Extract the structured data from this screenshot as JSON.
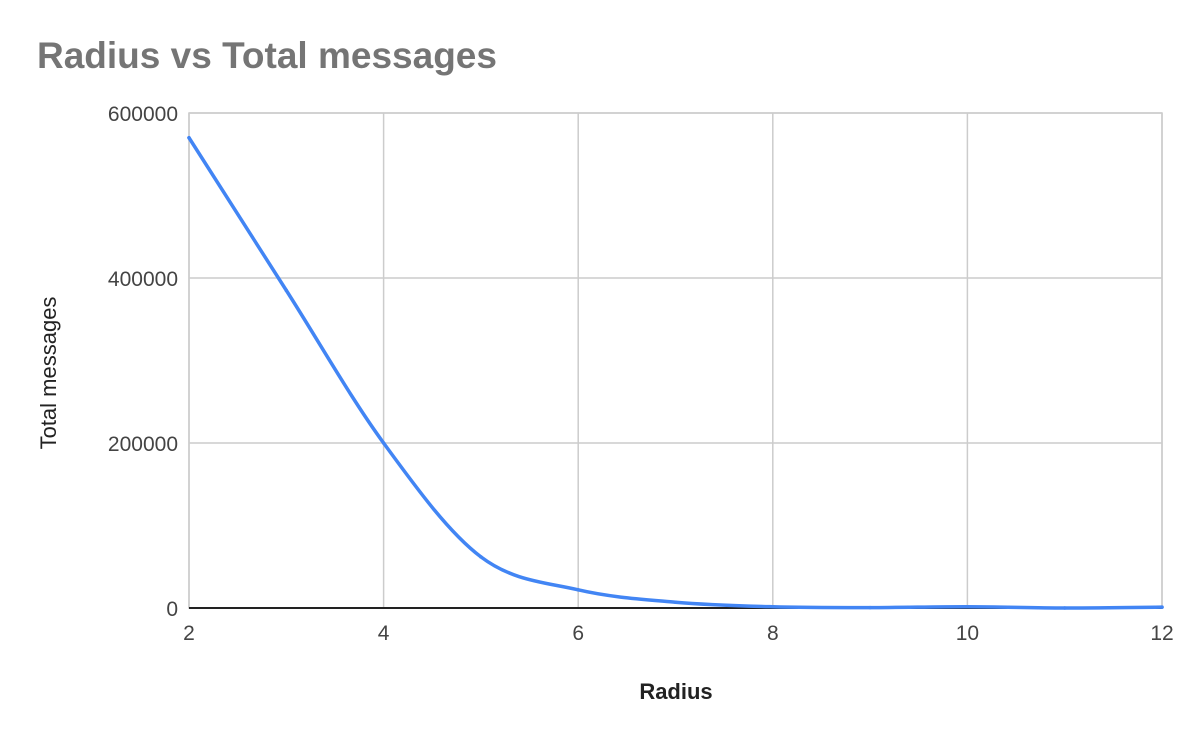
{
  "chart_data": {
    "type": "line",
    "title": "Radius vs Total messages",
    "xlabel": "Radius",
    "ylabel": "Total messages",
    "xlim": [
      2,
      12
    ],
    "ylim": [
      0,
      600000
    ],
    "x_ticks": [
      2,
      4,
      6,
      8,
      10,
      12
    ],
    "y_ticks": [
      0,
      200000,
      400000,
      600000
    ],
    "grid": true,
    "legend": "none",
    "series": [
      {
        "color": "#4285f4",
        "x": [
          2,
          3,
          4,
          5,
          6,
          7,
          8,
          9,
          10,
          11,
          12
        ],
        "y": [
          570000,
          385000,
          200000,
          62000,
          22000,
          7000,
          1500,
          500,
          1500,
          0,
          1000
        ]
      }
    ]
  }
}
